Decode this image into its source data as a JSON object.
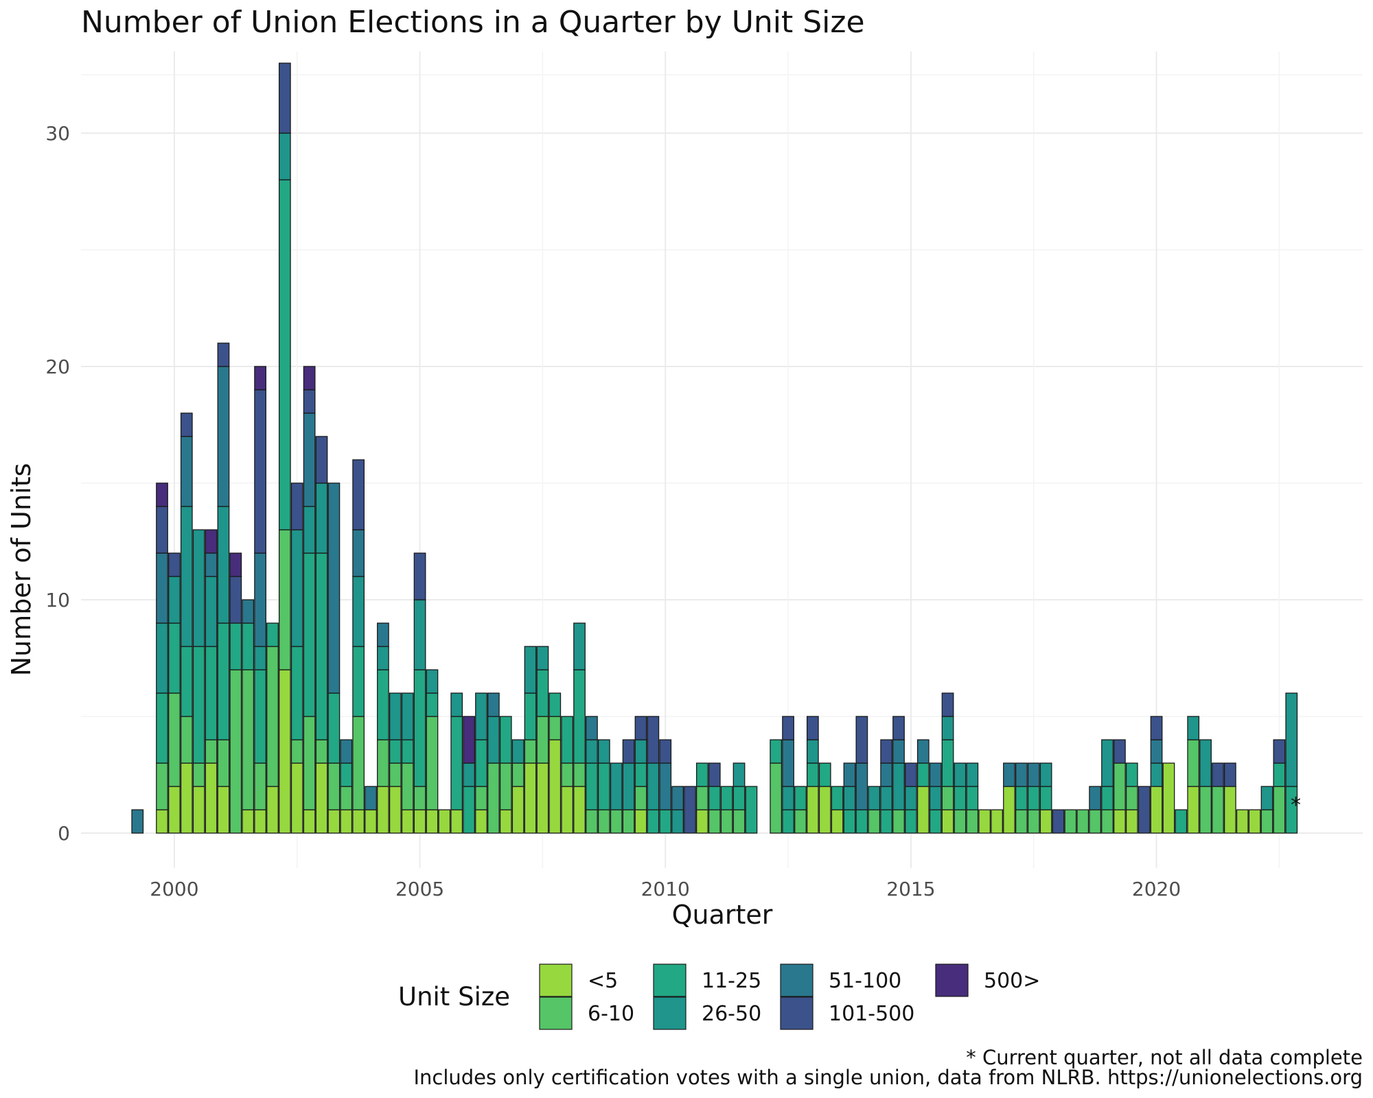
{
  "chart_data": {
    "type": "bar",
    "stacked": true,
    "title": "Number of Union Elections in a Quarter by Unit Size",
    "xlabel": "Quarter",
    "ylabel": "Number of Units",
    "x_ticks": [
      "2000",
      "2005",
      "2010",
      "2015",
      "2020"
    ],
    "y_ticks": [
      "0",
      "10",
      "20",
      "30"
    ],
    "xlim": [
      1998.1,
      2024.2
    ],
    "ylim": [
      -1.5,
      33.5
    ],
    "grid": true,
    "legend": {
      "title": "Unit Size",
      "position": "bottom",
      "entries": [
        "<5",
        "6-10",
        "11-25",
        "26-50",
        "51-100",
        "101-500",
        "500>"
      ]
    },
    "series_colors": [
      "#97d83f",
      "#55c567",
      "#22a884",
      "#1f958b",
      "#2a788e",
      "#3b528b",
      "#472d7b"
    ],
    "quarters": [
      {
        "x": 1999.25,
        "v": [
          0,
          0,
          0,
          0,
          1,
          0,
          0
        ]
      },
      {
        "x": 1999.75,
        "v": [
          1,
          2,
          3,
          3,
          3,
          2,
          1
        ]
      },
      {
        "x": 2000.0,
        "v": [
          2,
          4,
          3,
          2,
          0,
          1,
          0
        ]
      },
      {
        "x": 2000.25,
        "v": [
          3,
          2,
          3,
          6,
          3,
          1,
          0
        ]
      },
      {
        "x": 2000.5,
        "v": [
          2,
          1,
          5,
          5,
          0,
          0,
          0
        ]
      },
      {
        "x": 2000.75,
        "v": [
          3,
          1,
          4,
          3,
          1,
          0,
          1
        ]
      },
      {
        "x": 2001.0,
        "v": [
          2,
          2,
          5,
          5,
          6,
          1,
          0
        ]
      },
      {
        "x": 2001.25,
        "v": [
          0,
          7,
          2,
          0,
          0,
          2,
          1
        ]
      },
      {
        "x": 2001.5,
        "v": [
          1,
          6,
          2,
          0,
          1,
          0,
          0
        ]
      },
      {
        "x": 2001.75,
        "v": [
          1,
          2,
          4,
          1,
          4,
          7,
          1
        ]
      },
      {
        "x": 2002.0,
        "v": [
          2,
          6,
          1,
          0,
          0,
          0,
          0
        ]
      },
      {
        "x": 2002.25,
        "v": [
          7,
          6,
          15,
          2,
          0,
          3,
          0
        ]
      },
      {
        "x": 2002.5,
        "v": [
          3,
          1,
          4,
          5,
          0,
          2,
          0
        ]
      },
      {
        "x": 2002.75,
        "v": [
          1,
          4,
          7,
          2,
          4,
          1,
          1
        ]
      },
      {
        "x": 2003.0,
        "v": [
          3,
          1,
          8,
          3,
          0,
          2,
          0
        ]
      },
      {
        "x": 2003.25,
        "v": [
          1,
          2,
          3,
          0,
          9,
          0,
          0
        ]
      },
      {
        "x": 2003.5,
        "v": [
          1,
          1,
          1,
          0,
          1,
          0,
          0
        ]
      },
      {
        "x": 2003.75,
        "v": [
          1,
          4,
          3,
          3,
          2,
          3,
          0
        ]
      },
      {
        "x": 2004.0,
        "v": [
          1,
          0,
          0,
          0,
          1,
          0,
          0
        ]
      },
      {
        "x": 2004.25,
        "v": [
          2,
          2,
          3,
          1,
          1,
          0,
          0
        ]
      },
      {
        "x": 2004.5,
        "v": [
          2,
          1,
          1,
          2,
          0,
          0,
          0
        ]
      },
      {
        "x": 2004.75,
        "v": [
          1,
          2,
          1,
          2,
          0,
          0,
          0
        ]
      },
      {
        "x": 2005.0,
        "v": [
          1,
          1,
          5,
          3,
          0,
          2,
          0
        ]
      },
      {
        "x": 2005.25,
        "v": [
          1,
          4,
          1,
          1,
          0,
          0,
          0
        ]
      },
      {
        "x": 2005.5,
        "v": [
          1,
          0,
          0,
          0,
          0,
          0,
          0
        ]
      },
      {
        "x": 2005.75,
        "v": [
          1,
          0,
          4,
          1,
          0,
          0,
          0
        ]
      },
      {
        "x": 2006.0,
        "v": [
          0,
          0,
          2,
          1,
          0,
          0,
          2
        ]
      },
      {
        "x": 2006.25,
        "v": [
          1,
          1,
          2,
          2,
          0,
          0,
          0
        ]
      },
      {
        "x": 2006.5,
        "v": [
          0,
          3,
          0,
          2,
          1,
          0,
          0
        ]
      },
      {
        "x": 2006.75,
        "v": [
          1,
          2,
          2,
          0,
          0,
          0,
          0
        ]
      },
      {
        "x": 2007.0,
        "v": [
          2,
          1,
          0,
          1,
          0,
          0,
          0
        ]
      },
      {
        "x": 2007.25,
        "v": [
          3,
          1,
          2,
          2,
          0,
          0,
          0
        ]
      },
      {
        "x": 2007.5,
        "v": [
          3,
          2,
          2,
          1,
          0,
          0,
          0
        ]
      },
      {
        "x": 2007.75,
        "v": [
          4,
          1,
          1,
          0,
          0,
          0,
          0
        ]
      },
      {
        "x": 2008.0,
        "v": [
          2,
          1,
          2,
          0,
          0,
          0,
          0
        ]
      },
      {
        "x": 2008.25,
        "v": [
          2,
          1,
          4,
          2,
          0,
          0,
          0
        ]
      },
      {
        "x": 2008.5,
        "v": [
          0,
          1,
          2,
          1,
          1,
          0,
          0
        ]
      },
      {
        "x": 2008.75,
        "v": [
          0,
          1,
          2,
          1,
          0,
          0,
          0
        ]
      },
      {
        "x": 2009.0,
        "v": [
          0,
          1,
          0,
          2,
          0,
          0,
          0
        ]
      },
      {
        "x": 2009.25,
        "v": [
          0,
          1,
          0,
          2,
          0,
          1,
          0
        ]
      },
      {
        "x": 2009.5,
        "v": [
          1,
          1,
          1,
          1,
          0,
          1,
          0
        ]
      },
      {
        "x": 2009.75,
        "v": [
          0,
          0,
          1,
          2,
          0,
          2,
          0
        ]
      },
      {
        "x": 2010.0,
        "v": [
          0,
          0,
          1,
          0,
          2,
          1,
          0
        ]
      },
      {
        "x": 2010.25,
        "v": [
          0,
          0,
          0,
          1,
          1,
          0,
          0
        ]
      },
      {
        "x": 2010.5,
        "v": [
          0,
          0,
          0,
          0,
          0,
          2,
          0
        ]
      },
      {
        "x": 2010.75,
        "v": [
          1,
          1,
          1,
          0,
          0,
          0,
          0
        ]
      },
      {
        "x": 2011.0,
        "v": [
          0,
          1,
          1,
          0,
          0,
          1,
          0
        ]
      },
      {
        "x": 2011.25,
        "v": [
          0,
          1,
          1,
          0,
          0,
          0,
          0
        ]
      },
      {
        "x": 2011.5,
        "v": [
          0,
          1,
          1,
          1,
          0,
          0,
          0
        ]
      },
      {
        "x": 2011.75,
        "v": [
          0,
          0,
          2,
          0,
          0,
          0,
          0
        ]
      },
      {
        "x": 2012.25,
        "v": [
          0,
          3,
          1,
          0,
          0,
          0,
          0
        ]
      },
      {
        "x": 2012.5,
        "v": [
          0,
          0,
          1,
          1,
          2,
          1,
          0
        ]
      },
      {
        "x": 2012.75,
        "v": [
          0,
          1,
          1,
          0,
          0,
          0,
          0
        ]
      },
      {
        "x": 2013.0,
        "v": [
          2,
          0,
          1,
          1,
          0,
          1,
          0
        ]
      },
      {
        "x": 2013.25,
        "v": [
          2,
          0,
          1,
          0,
          0,
          0,
          0
        ]
      },
      {
        "x": 2013.5,
        "v": [
          1,
          0,
          1,
          0,
          0,
          0,
          0
        ]
      },
      {
        "x": 2013.75,
        "v": [
          0,
          0,
          1,
          1,
          1,
          0,
          0
        ]
      },
      {
        "x": 2014.0,
        "v": [
          0,
          0,
          1,
          0,
          2,
          2,
          0
        ]
      },
      {
        "x": 2014.25,
        "v": [
          0,
          1,
          0,
          1,
          0,
          0,
          0
        ]
      },
      {
        "x": 2014.5,
        "v": [
          0,
          0,
          1,
          1,
          1,
          1,
          0
        ]
      },
      {
        "x": 2014.75,
        "v": [
          0,
          1,
          0,
          2,
          1,
          1,
          0
        ]
      },
      {
        "x": 2015.0,
        "v": [
          0,
          0,
          1,
          1,
          0,
          1,
          0
        ]
      },
      {
        "x": 2015.25,
        "v": [
          2,
          0,
          1,
          0,
          1,
          0,
          0
        ]
      },
      {
        "x": 2015.5,
        "v": [
          0,
          0,
          1,
          1,
          1,
          0,
          0
        ]
      },
      {
        "x": 2015.75,
        "v": [
          1,
          1,
          2,
          1,
          0,
          1,
          0
        ]
      },
      {
        "x": 2016.0,
        "v": [
          0,
          1,
          1,
          1,
          0,
          0,
          0
        ]
      },
      {
        "x": 2016.25,
        "v": [
          0,
          1,
          1,
          1,
          0,
          0,
          0
        ]
      },
      {
        "x": 2016.5,
        "v": [
          1,
          0,
          0,
          0,
          0,
          0,
          0
        ]
      },
      {
        "x": 2016.75,
        "v": [
          1,
          0,
          0,
          0,
          0,
          0,
          0
        ]
      },
      {
        "x": 2017.0,
        "v": [
          2,
          0,
          0,
          0,
          1,
          0,
          0
        ]
      },
      {
        "x": 2017.25,
        "v": [
          0,
          1,
          1,
          0,
          1,
          0,
          0
        ]
      },
      {
        "x": 2017.5,
        "v": [
          0,
          1,
          1,
          0,
          1,
          0,
          0
        ]
      },
      {
        "x": 2017.75,
        "v": [
          1,
          0,
          1,
          1,
          0,
          0,
          0
        ]
      },
      {
        "x": 2018.0,
        "v": [
          0,
          0,
          0,
          0,
          0,
          1,
          0
        ]
      },
      {
        "x": 2018.25,
        "v": [
          0,
          1,
          0,
          0,
          0,
          0,
          0
        ]
      },
      {
        "x": 2018.5,
        "v": [
          0,
          1,
          0,
          0,
          0,
          0,
          0
        ]
      },
      {
        "x": 2018.75,
        "v": [
          0,
          1,
          0,
          0,
          1,
          0,
          0
        ]
      },
      {
        "x": 2019.0,
        "v": [
          0,
          1,
          1,
          2,
          0,
          0,
          0
        ]
      },
      {
        "x": 2019.25,
        "v": [
          1,
          2,
          0,
          0,
          0,
          1,
          0
        ]
      },
      {
        "x": 2019.5,
        "v": [
          1,
          1,
          1,
          0,
          0,
          0,
          0
        ]
      },
      {
        "x": 2019.75,
        "v": [
          0,
          0,
          0,
          0,
          0,
          2,
          0
        ]
      },
      {
        "x": 2020.0,
        "v": [
          2,
          0,
          0,
          1,
          1,
          1,
          0
        ]
      },
      {
        "x": 2020.25,
        "v": [
          3,
          0,
          0,
          0,
          0,
          0,
          0
        ]
      },
      {
        "x": 2020.5,
        "v": [
          0,
          0,
          1,
          0,
          0,
          0,
          0
        ]
      },
      {
        "x": 2020.75,
        "v": [
          2,
          2,
          0,
          1,
          0,
          0,
          0
        ]
      },
      {
        "x": 2021.0,
        "v": [
          0,
          2,
          0,
          2,
          0,
          0,
          0
        ]
      },
      {
        "x": 2021.25,
        "v": [
          0,
          2,
          0,
          0,
          0,
          1,
          0
        ]
      },
      {
        "x": 2021.5,
        "v": [
          2,
          0,
          0,
          0,
          0,
          1,
          0
        ]
      },
      {
        "x": 2021.75,
        "v": [
          1,
          0,
          0,
          0,
          0,
          0,
          0
        ]
      },
      {
        "x": 2022.0,
        "v": [
          1,
          0,
          0,
          0,
          0,
          0,
          0
        ]
      },
      {
        "x": 2022.25,
        "v": [
          0,
          1,
          0,
          1,
          0,
          0,
          0
        ]
      },
      {
        "x": 2022.5,
        "v": [
          0,
          2,
          1,
          0,
          0,
          1,
          0
        ]
      },
      {
        "x": 2022.75,
        "v": [
          0,
          0,
          2,
          4,
          0,
          0,
          0
        ]
      }
    ],
    "annotation": "*",
    "captions": [
      "* Current quarter, not all data complete",
      "Includes only certification votes with a single union, data from NLRB. https://unionelections.org"
    ]
  }
}
